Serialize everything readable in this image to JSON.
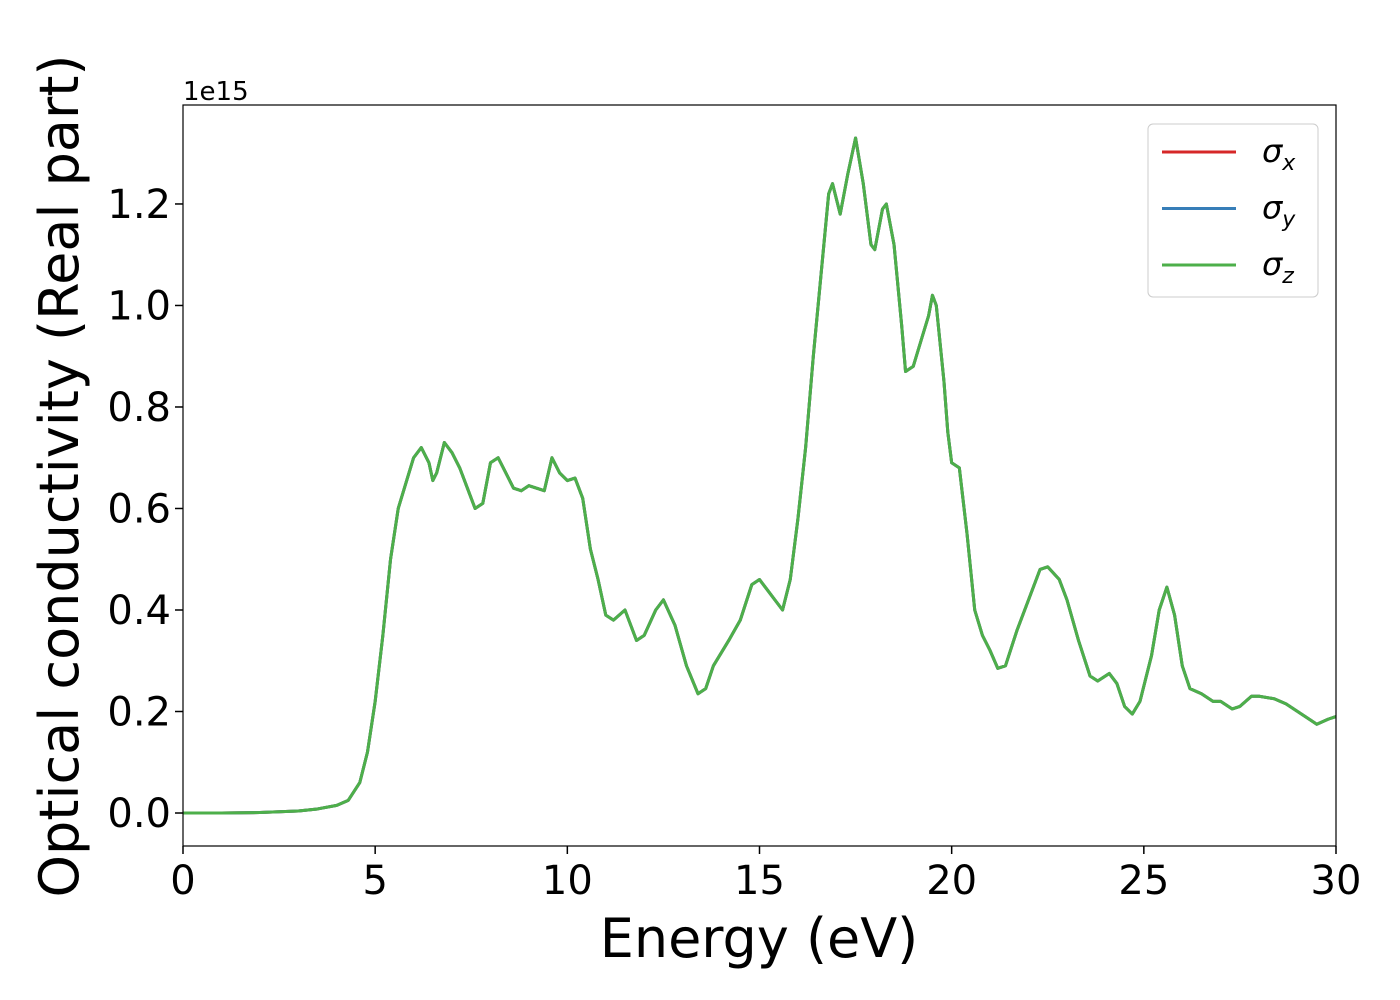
{
  "chart_data": {
    "type": "line",
    "xlabel": "Energy (eV)",
    "ylabel": "Optical conductivity (Real part)",
    "y_offset_label": "1e15",
    "legend": "upper right",
    "xlim": [
      0,
      30
    ],
    "xticks": [
      0,
      5,
      10,
      15,
      20,
      25,
      30
    ],
    "ylim": [
      -0.065,
      1.395
    ],
    "yticks": [
      {
        "value": 0,
        "label": "0.0"
      },
      0.2,
      0.4,
      0.6,
      0.8,
      {
        "value": 1,
        "label": "1.0"
      },
      1.2
    ],
    "x": [
      0,
      1,
      2,
      3,
      3.5,
      4,
      4.3,
      4.6,
      4.8,
      5,
      5.2,
      5.4,
      5.6,
      5.8,
      6,
      6.2,
      6.4,
      6.5,
      6.6,
      6.8,
      7,
      7.2,
      7.4,
      7.6,
      7.8,
      8,
      8.2,
      8.4,
      8.6,
      8.8,
      9,
      9.2,
      9.4,
      9.6,
      9.8,
      10,
      10.2,
      10.4,
      10.6,
      10.8,
      11,
      11.2,
      11.5,
      11.8,
      12,
      12.3,
      12.5,
      12.8,
      13.1,
      13.4,
      13.6,
      13.8,
      14.2,
      14.5,
      14.8,
      15,
      15.2,
      15.4,
      15.6,
      15.8,
      16,
      16.2,
      16.4,
      16.6,
      16.8,
      16.9,
      17.1,
      17.3,
      17.5,
      17.7,
      17.9,
      18,
      18.2,
      18.3,
      18.5,
      18.7,
      18.8,
      19,
      19.2,
      19.4,
      19.5,
      19.6,
      19.8,
      19.9,
      20,
      20.2,
      20.4,
      20.6,
      20.8,
      21,
      21.2,
      21.4,
      21.7,
      22,
      22.3,
      22.5,
      22.8,
      23,
      23.3,
      23.6,
      23.8,
      24.1,
      24.3,
      24.5,
      24.7,
      24.9,
      25.2,
      25.4,
      25.6,
      25.8,
      26,
      26.2,
      26.5,
      26.8,
      27,
      27.3,
      27.5,
      27.8,
      28,
      28.4,
      28.7,
      29,
      29.3,
      29.5,
      29.8,
      30
    ],
    "series": [
      {
        "name": "σx",
        "color": "#d62728",
        "values": [
          0,
          0,
          0.001,
          0.004,
          0.008,
          0.015,
          0.025,
          0.06,
          0.12,
          0.22,
          0.35,
          0.5,
          0.6,
          0.65,
          0.7,
          0.72,
          0.69,
          0.655,
          0.67,
          0.73,
          0.71,
          0.68,
          0.64,
          0.6,
          0.61,
          0.69,
          0.7,
          0.67,
          0.64,
          0.635,
          0.645,
          0.64,
          0.635,
          0.7,
          0.67,
          0.655,
          0.66,
          0.62,
          0.52,
          0.46,
          0.39,
          0.38,
          0.4,
          0.34,
          0.35,
          0.4,
          0.42,
          0.37,
          0.29,
          0.235,
          0.245,
          0.29,
          0.34,
          0.38,
          0.45,
          0.46,
          0.44,
          0.42,
          0.4,
          0.46,
          0.58,
          0.72,
          0.9,
          1.06,
          1.22,
          1.24,
          1.18,
          1.26,
          1.33,
          1.24,
          1.12,
          1.11,
          1.19,
          1.2,
          1.12,
          0.96,
          0.87,
          0.88,
          0.93,
          0.98,
          1.02,
          1,
          0.85,
          0.75,
          0.69,
          0.68,
          0.55,
          0.4,
          0.35,
          0.32,
          0.285,
          0.29,
          0.36,
          0.42,
          0.48,
          0.485,
          0.46,
          0.42,
          0.34,
          0.27,
          0.26,
          0.275,
          0.255,
          0.21,
          0.195,
          0.22,
          0.31,
          0.4,
          0.445,
          0.39,
          0.29,
          0.245,
          0.235,
          0.22,
          0.22,
          0.205,
          0.21,
          0.23,
          0.23,
          0.225,
          0.215,
          0.2,
          0.185,
          0.175,
          0.185,
          0.19
        ]
      },
      {
        "name": "σy",
        "color": "#377eb8",
        "values": [
          0,
          0,
          0.001,
          0.004,
          0.008,
          0.015,
          0.025,
          0.06,
          0.12,
          0.22,
          0.35,
          0.5,
          0.6,
          0.65,
          0.7,
          0.72,
          0.69,
          0.655,
          0.67,
          0.73,
          0.71,
          0.68,
          0.64,
          0.6,
          0.61,
          0.69,
          0.7,
          0.67,
          0.64,
          0.635,
          0.645,
          0.64,
          0.635,
          0.7,
          0.67,
          0.655,
          0.66,
          0.62,
          0.52,
          0.46,
          0.39,
          0.38,
          0.4,
          0.34,
          0.35,
          0.4,
          0.42,
          0.37,
          0.29,
          0.235,
          0.245,
          0.29,
          0.34,
          0.38,
          0.45,
          0.46,
          0.44,
          0.42,
          0.4,
          0.46,
          0.58,
          0.72,
          0.9,
          1.06,
          1.22,
          1.24,
          1.18,
          1.26,
          1.33,
          1.24,
          1.12,
          1.11,
          1.19,
          1.2,
          1.12,
          0.96,
          0.87,
          0.88,
          0.93,
          0.98,
          1.02,
          1,
          0.85,
          0.75,
          0.69,
          0.68,
          0.55,
          0.4,
          0.35,
          0.32,
          0.285,
          0.29,
          0.36,
          0.42,
          0.48,
          0.485,
          0.46,
          0.42,
          0.34,
          0.27,
          0.26,
          0.275,
          0.255,
          0.21,
          0.195,
          0.22,
          0.31,
          0.4,
          0.445,
          0.39,
          0.29,
          0.245,
          0.235,
          0.22,
          0.22,
          0.205,
          0.21,
          0.23,
          0.23,
          0.225,
          0.215,
          0.2,
          0.185,
          0.175,
          0.185,
          0.19
        ]
      },
      {
        "name": "σz",
        "color": "#4daf4a",
        "values": [
          0,
          0,
          0.001,
          0.004,
          0.008,
          0.015,
          0.025,
          0.06,
          0.12,
          0.22,
          0.35,
          0.5,
          0.6,
          0.65,
          0.7,
          0.72,
          0.69,
          0.655,
          0.67,
          0.73,
          0.71,
          0.68,
          0.64,
          0.6,
          0.61,
          0.69,
          0.7,
          0.67,
          0.64,
          0.635,
          0.645,
          0.64,
          0.635,
          0.7,
          0.67,
          0.655,
          0.66,
          0.62,
          0.52,
          0.46,
          0.39,
          0.38,
          0.4,
          0.34,
          0.35,
          0.4,
          0.42,
          0.37,
          0.29,
          0.235,
          0.245,
          0.29,
          0.34,
          0.38,
          0.45,
          0.46,
          0.44,
          0.42,
          0.4,
          0.46,
          0.58,
          0.72,
          0.9,
          1.06,
          1.22,
          1.24,
          1.18,
          1.26,
          1.33,
          1.24,
          1.12,
          1.11,
          1.19,
          1.2,
          1.12,
          0.96,
          0.87,
          0.88,
          0.93,
          0.98,
          1.02,
          1,
          0.85,
          0.75,
          0.69,
          0.68,
          0.55,
          0.4,
          0.35,
          0.32,
          0.285,
          0.29,
          0.36,
          0.42,
          0.48,
          0.485,
          0.46,
          0.42,
          0.34,
          0.27,
          0.26,
          0.275,
          0.255,
          0.21,
          0.195,
          0.22,
          0.31,
          0.4,
          0.445,
          0.39,
          0.29,
          0.245,
          0.235,
          0.22,
          0.22,
          0.205,
          0.21,
          0.23,
          0.23,
          0.225,
          0.215,
          0.2,
          0.185,
          0.175,
          0.185,
          0.19
        ]
      }
    ]
  }
}
